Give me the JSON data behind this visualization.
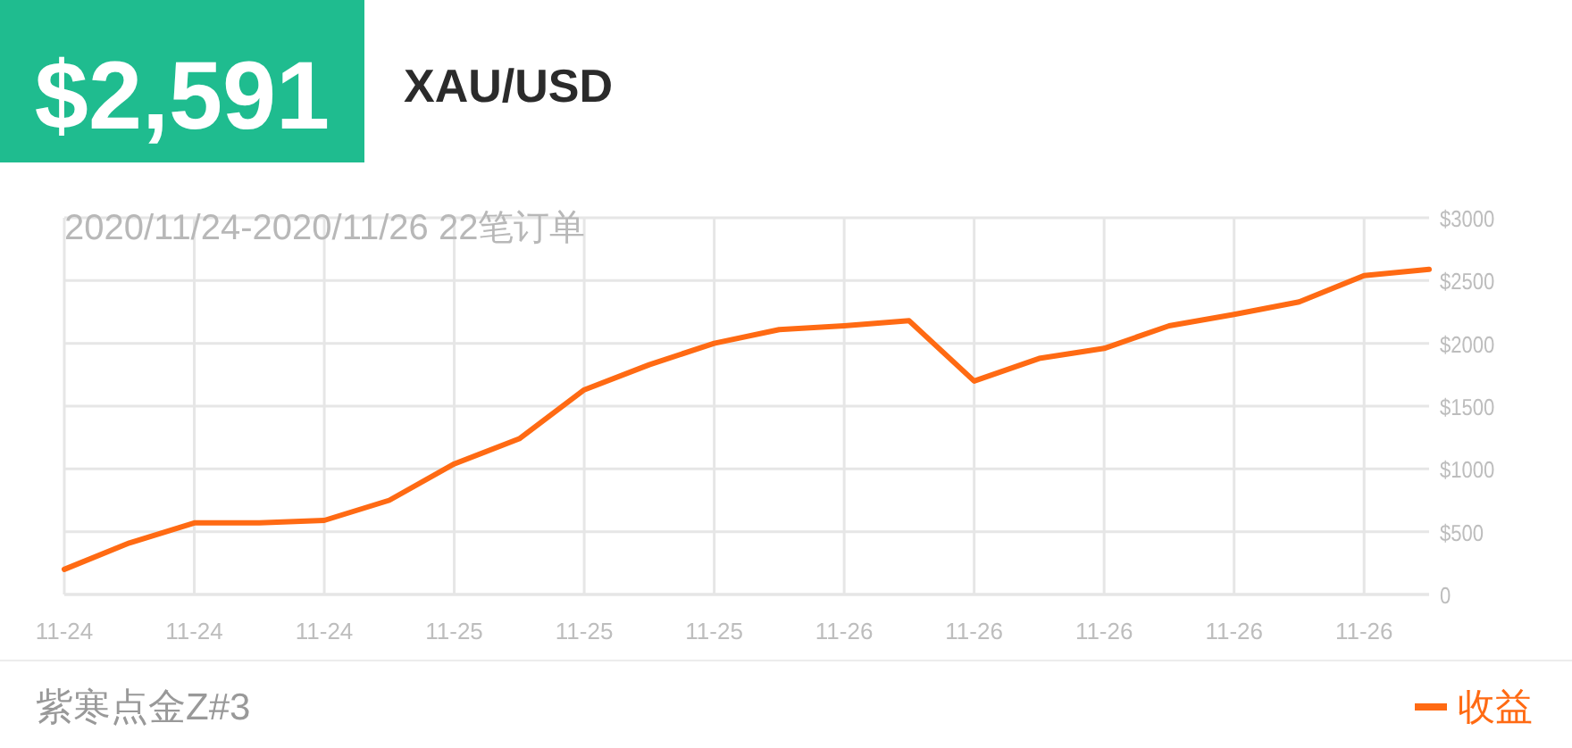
{
  "chart_data": {
    "type": "line",
    "title": "XAU/USD",
    "annotations": [
      "$2,591",
      "2020/11/24-2020/11/26 22笔订单",
      "紫寒点金Z#3"
    ],
    "categories": [
      "11-24",
      null,
      "11-24",
      null,
      "11-24",
      null,
      "11-25",
      null,
      "11-25",
      null,
      "11-25",
      null,
      "11-26",
      null,
      "11-26",
      null,
      "11-26",
      null,
      "11-26",
      null,
      "11-26",
      null
    ],
    "series": [
      {
        "name": "收益",
        "color": "#ff6a13",
        "values": [
          200,
          410,
          570,
          570,
          590,
          750,
          1040,
          1240,
          1630,
          1830,
          2000,
          2110,
          2140,
          2180,
          1700,
          1880,
          1960,
          2140,
          2230,
          2330,
          2540,
          2590
        ]
      }
    ],
    "ylim": [
      0,
      3000
    ],
    "yticks": [
      {
        "value": 0,
        "label": "0"
      },
      {
        "value": 500,
        "label": "$500"
      },
      {
        "value": 1000,
        "label": "$1000"
      },
      {
        "value": 1500,
        "label": "$1500"
      },
      {
        "value": 2000,
        "label": "$2000"
      },
      {
        "value": 2500,
        "label": "$2500"
      },
      {
        "value": 3000,
        "label": "$3000"
      }
    ],
    "grid": true,
    "legend": "bottom right",
    "line_style": "solid",
    "marker": "none"
  }
}
